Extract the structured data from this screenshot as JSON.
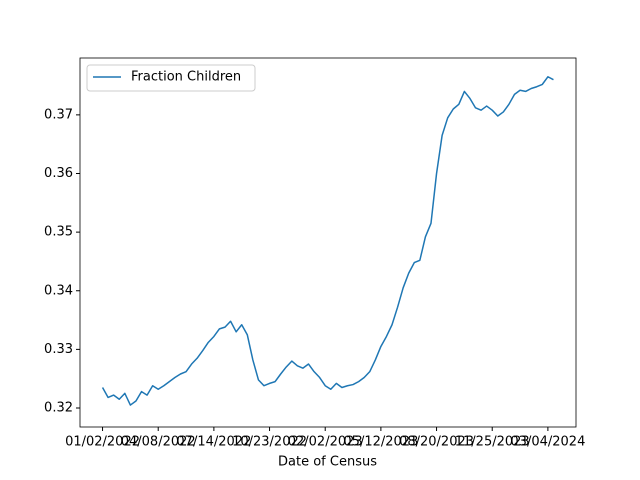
{
  "chart_data": {
    "type": "line",
    "x_label": "Date of Census",
    "categories": [
      "01/02/2022",
      null,
      null,
      null,
      null,
      null,
      null,
      null,
      null,
      null,
      "04/08/2022",
      null,
      null,
      null,
      null,
      null,
      null,
      null,
      null,
      null,
      "07/14/2022",
      null,
      null,
      null,
      null,
      null,
      null,
      null,
      null,
      null,
      "10/23/2022",
      null,
      null,
      null,
      null,
      null,
      null,
      null,
      null,
      null,
      "02/02/2023",
      null,
      null,
      null,
      null,
      null,
      null,
      null,
      null,
      null,
      "05/12/2023",
      null,
      null,
      null,
      null,
      null,
      null,
      null,
      null,
      null,
      "08/20/2023",
      null,
      null,
      null,
      null,
      null,
      null,
      null,
      null,
      null,
      "11/25/2023",
      null,
      null,
      null,
      null,
      null,
      null,
      null,
      null,
      null,
      "03/04/2024",
      null
    ],
    "series": [
      {
        "name": "Fraction Children",
        "color": "#1f77b4",
        "values": [
          0.3235,
          0.3218,
          0.3222,
          0.3215,
          0.3225,
          0.3205,
          0.3212,
          0.3228,
          0.3222,
          0.3238,
          0.3232,
          0.3238,
          0.3245,
          0.3252,
          0.3258,
          0.3262,
          0.3275,
          0.3285,
          0.3298,
          0.3312,
          0.3322,
          0.3335,
          0.3338,
          0.3348,
          0.333,
          0.3342,
          0.3325,
          0.3282,
          0.3248,
          0.3238,
          0.3242,
          0.3245,
          0.3258,
          0.327,
          0.328,
          0.3272,
          0.3268,
          0.3275,
          0.3262,
          0.3252,
          0.3238,
          0.3232,
          0.3242,
          0.3235,
          0.3238,
          0.324,
          0.3245,
          0.3252,
          0.3262,
          0.3282,
          0.3305,
          0.3322,
          0.3342,
          0.3372,
          0.3405,
          0.343,
          0.3448,
          0.3452,
          0.3492,
          0.3515,
          0.36,
          0.3665,
          0.3695,
          0.371,
          0.3718,
          0.374,
          0.3728,
          0.3712,
          0.3708,
          0.3715,
          0.3708,
          0.3698,
          0.3705,
          0.3718,
          0.3735,
          0.3742,
          0.374,
          0.3745,
          0.3748,
          0.3752,
          0.3765,
          0.376
        ]
      }
    ],
    "ylim": [
      0.31676,
      0.3797
    ],
    "yticks": [
      0.32,
      0.33,
      0.34,
      0.35,
      0.36,
      0.37
    ],
    "legend": "upper left"
  }
}
